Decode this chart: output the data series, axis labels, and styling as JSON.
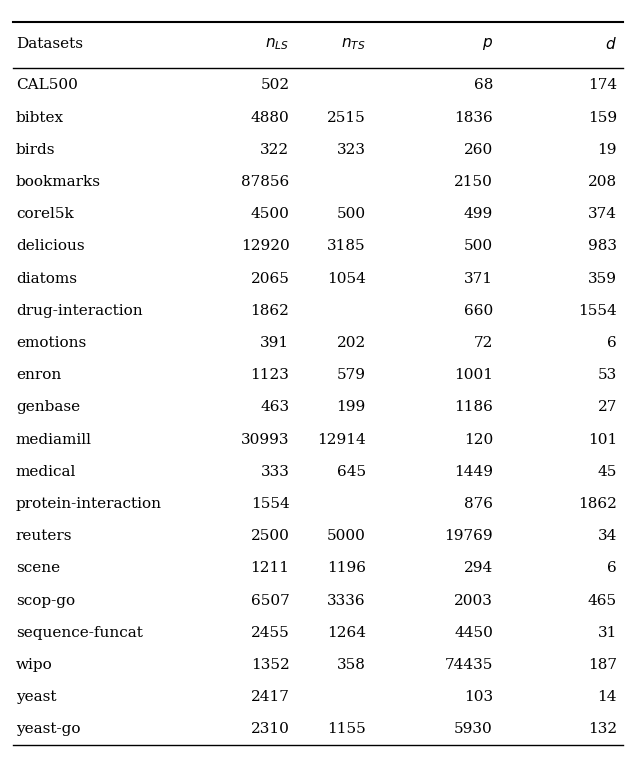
{
  "columns": [
    "Datasets",
    "$n_{LS}$",
    "$n_{TS}$",
    "$p$",
    "$d$"
  ],
  "rows": [
    [
      "CAL500",
      "502",
      "",
      "68",
      "174"
    ],
    [
      "bibtex",
      "4880",
      "2515",
      "1836",
      "159"
    ],
    [
      "birds",
      "322",
      "323",
      "260",
      "19"
    ],
    [
      "bookmarks",
      "87856",
      "",
      "2150",
      "208"
    ],
    [
      "corel5k",
      "4500",
      "500",
      "499",
      "374"
    ],
    [
      "delicious",
      "12920",
      "3185",
      "500",
      "983"
    ],
    [
      "diatoms",
      "2065",
      "1054",
      "371",
      "359"
    ],
    [
      "drug-interaction",
      "1862",
      "",
      "660",
      "1554"
    ],
    [
      "emotions",
      "391",
      "202",
      "72",
      "6"
    ],
    [
      "enron",
      "1123",
      "579",
      "1001",
      "53"
    ],
    [
      "genbase",
      "463",
      "199",
      "1186",
      "27"
    ],
    [
      "mediamill",
      "30993",
      "12914",
      "120",
      "101"
    ],
    [
      "medical",
      "333",
      "645",
      "1449",
      "45"
    ],
    [
      "protein-interaction",
      "1554",
      "",
      "876",
      "1862"
    ],
    [
      "reuters",
      "2500",
      "5000",
      "19769",
      "34"
    ],
    [
      "scene",
      "1211",
      "1196",
      "294",
      "6"
    ],
    [
      "scop-go",
      "6507",
      "3336",
      "2003",
      "465"
    ],
    [
      "sequence-funcat",
      "2455",
      "1264",
      "4450",
      "31"
    ],
    [
      "wipo",
      "1352",
      "358",
      "74435",
      "187"
    ],
    [
      "yeast",
      "2417",
      "",
      "103",
      "14"
    ],
    [
      "yeast-go",
      "2310",
      "1155",
      "5930",
      "132"
    ]
  ],
  "col_align": [
    "left",
    "right",
    "right",
    "right",
    "right"
  ],
  "bold_rows": [],
  "bg_color": "#ffffff",
  "text_color": "#000000",
  "line_color": "#000000",
  "fontsize": 11.0,
  "header_fontsize": 11.0
}
